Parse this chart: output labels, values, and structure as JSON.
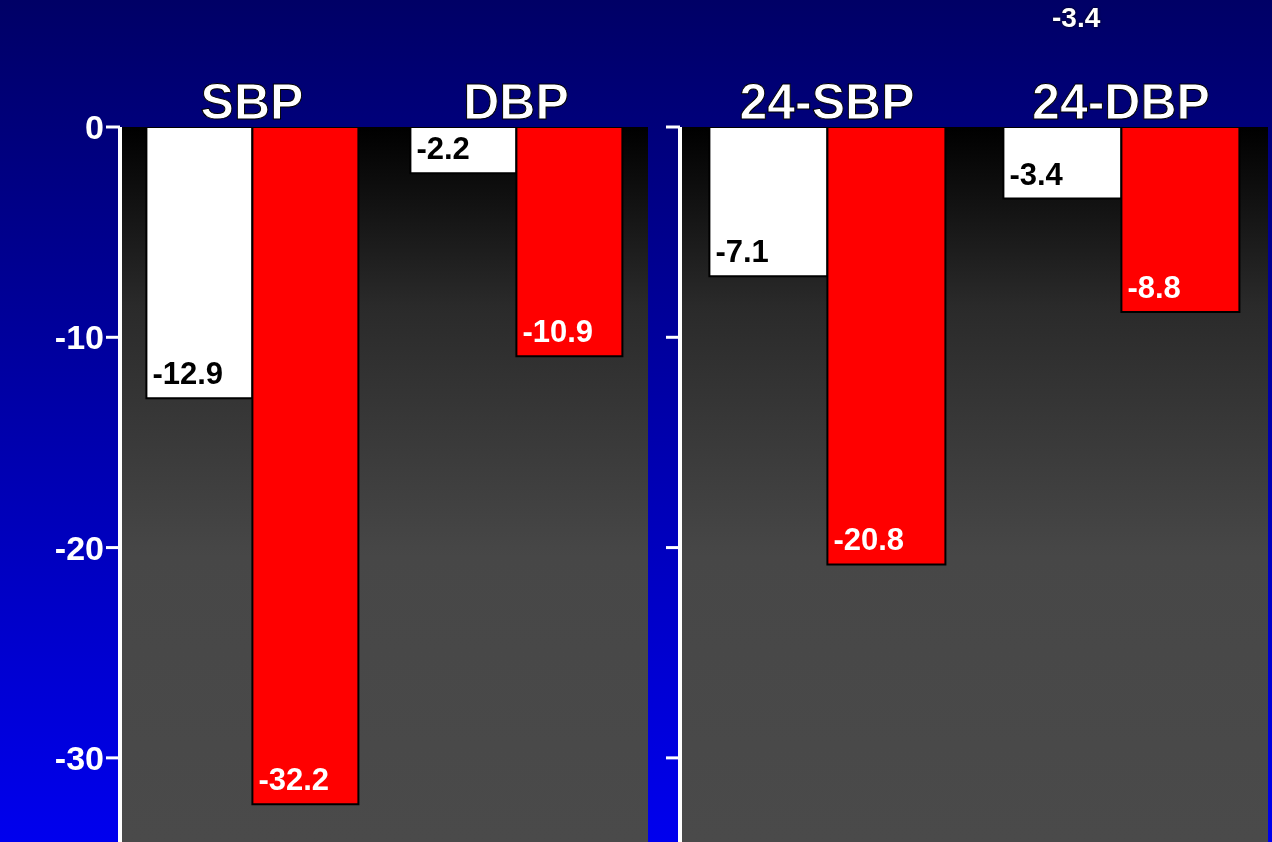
{
  "chart_data": [
    {
      "type": "bar",
      "categories": [
        "SBP",
        "DBP"
      ],
      "series": [
        {
          "color": "#ffffff",
          "values": [
            -12.9,
            -2.2
          ]
        },
        {
          "color": "#ff0000",
          "values": [
            -32.2,
            -10.9
          ]
        }
      ],
      "ylim": [
        -34,
        0
      ],
      "yticks": [
        0,
        -10,
        -20,
        -30
      ],
      "data_labels": true
    },
    {
      "type": "bar",
      "categories": [
        "24-SBP",
        "24-DBP"
      ],
      "series": [
        {
          "color": "#ffffff",
          "values": [
            -7.1,
            -3.4
          ]
        },
        {
          "color": "#ff0000",
          "values": [
            -20.8,
            -8.8
          ]
        }
      ],
      "ylim": [
        -34,
        0
      ],
      "yticks": [
        0,
        -10,
        -20,
        -30
      ],
      "data_labels": true,
      "tick_labels": "x",
      "annotations": [
        "-3.4"
      ]
    }
  ]
}
